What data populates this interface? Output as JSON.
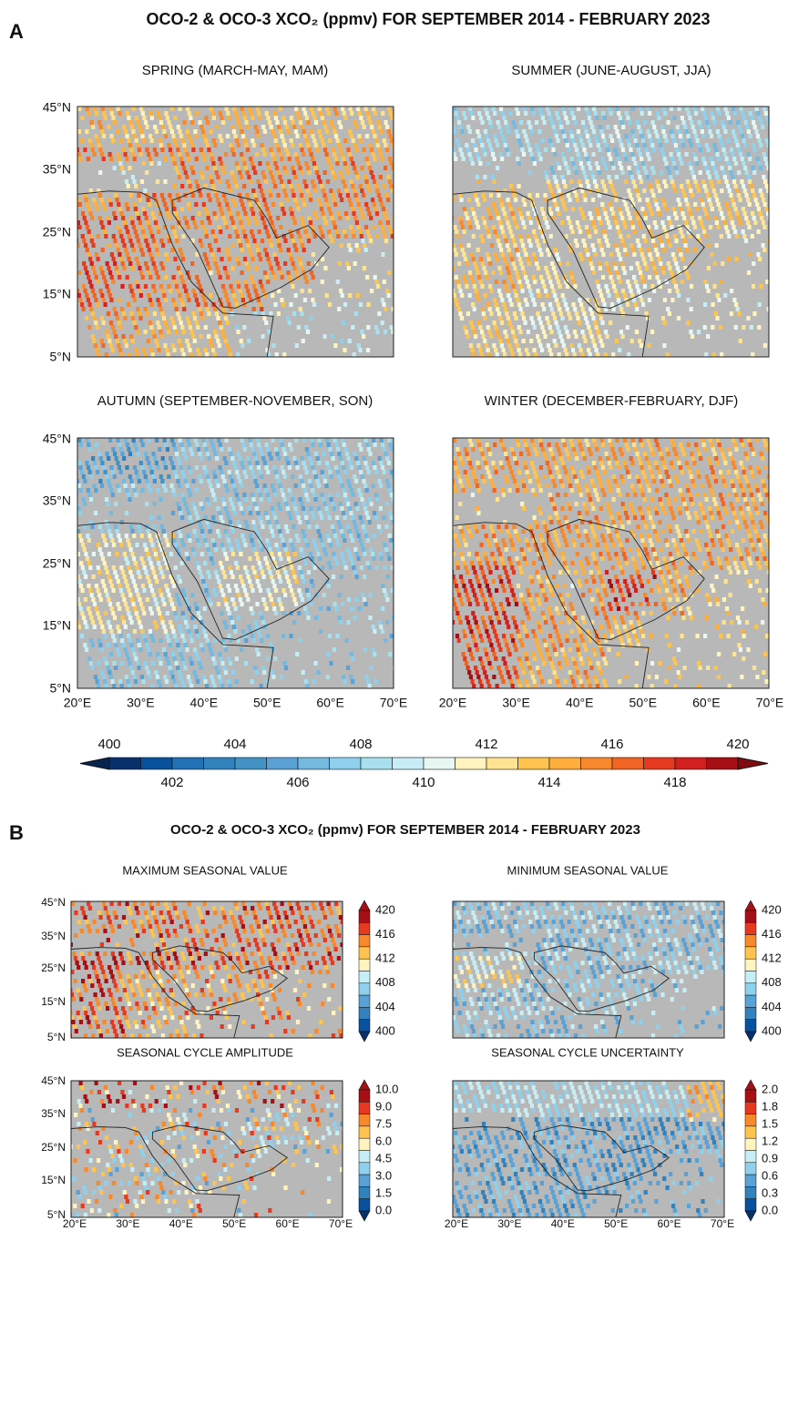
{
  "panel_a": {
    "label": "A",
    "title": "OCO-2 & OCO-3 XCO₂ (ppmv) FOR SEPTEMBER 2014 - FEBRUARY 2023",
    "maps": [
      {
        "title": "SPRING (MARCH-MAY, MAM)"
      },
      {
        "title": "SUMMER (JUNE-AUGUST, JJA)"
      },
      {
        "title": "AUTUMN (SEPTEMBER-NOVEMBER, SON)"
      },
      {
        "title": "WINTER (DECEMBER-FEBRUARY, DJF)"
      }
    ],
    "colorbar": {
      "upper_labels": [
        "400",
        "404",
        "408",
        "412",
        "416",
        "420"
      ],
      "lower_labels": [
        "402",
        "406",
        "410",
        "414",
        "418"
      ]
    }
  },
  "panel_b": {
    "label": "B",
    "title": "OCO-2 & OCO-3 XCO₂ (ppmv) FOR SEPTEMBER 2014 - FEBRUARY 2023",
    "maps": [
      {
        "title": "MAXIMUM SEASONAL VALUE",
        "colorbar": [
          "420",
          "416",
          "412",
          "408",
          "404",
          "400"
        ]
      },
      {
        "title": "MINIMUM SEASONAL VALUE",
        "colorbar": [
          "420",
          "416",
          "412",
          "408",
          "404",
          "400"
        ]
      },
      {
        "title": "SEASONAL CYCLE AMPLITUDE",
        "colorbar": [
          "10.0",
          "9.0",
          "7.5",
          "6.0",
          "4.5",
          "3.0",
          "1.5",
          "0.0"
        ]
      },
      {
        "title": "SEASONAL CYCLE UNCERTAINTY",
        "colorbar": [
          "2.0",
          "1.8",
          "1.5",
          "1.2",
          "0.9",
          "0.6",
          "0.3",
          "0.0"
        ]
      }
    ]
  },
  "lat_labels": [
    "45°N",
    "35°N",
    "25°N",
    "15°N",
    "5°N"
  ],
  "lon_labels": [
    "20°E",
    "30°E",
    "40°E",
    "50°E",
    "60°E",
    "70°E"
  ]
}
